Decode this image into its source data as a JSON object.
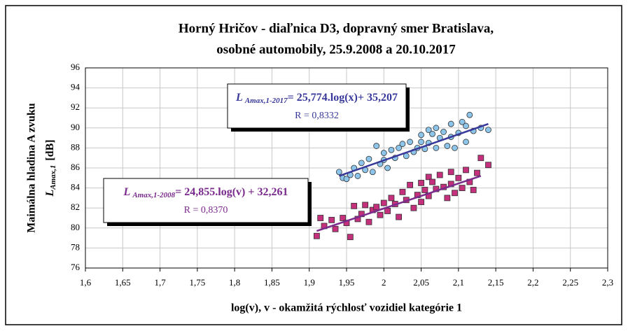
{
  "chart_data": {
    "type": "scatter",
    "title": [
      "Horný Hričov - diaľnica D3, dopravný smer Bratislava,",
      "osobné automobily, 25.9.2008 a 20.10.2017"
    ],
    "xlabel": "log(v), v -  okamžitá rýchlosť vozidiel kategórie 1",
    "ylabel": "Maimálna hladina A zvuku",
    "ylabel_symbol": "L",
    "ylabel_subscript": "Amax,1",
    "ylabel_unit": "[dB]",
    "xlim": [
      1.6,
      2.3
    ],
    "xticks": [
      {
        "value": 1.6,
        "label": "1,6"
      },
      {
        "value": 1.65,
        "label": "1,65"
      },
      {
        "value": 1.7,
        "label": "1,7"
      },
      {
        "value": 1.75,
        "label": "1,75"
      },
      {
        "value": 1.8,
        "label": "1,8"
      },
      {
        "value": 1.85,
        "label": "1,85"
      },
      {
        "value": 1.9,
        "label": "1,9"
      },
      {
        "value": 1.95,
        "label": "1,95"
      },
      2,
      {
        "value": 2.05,
        "label": "2,05"
      },
      {
        "value": 2.1,
        "label": "2,1"
      },
      {
        "value": 2.15,
        "label": "2,15"
      },
      {
        "value": 2.2,
        "label": "2,2"
      },
      {
        "value": 2.25,
        "label": "2,25"
      },
      {
        "value": 2.3,
        "label": "2,3"
      }
    ],
    "ylim": [
      76,
      96
    ],
    "yticks": [
      76,
      78,
      80,
      82,
      84,
      86,
      88,
      90,
      92,
      94,
      96
    ],
    "grid": true,
    "series": [
      {
        "marker": "circle",
        "color": "#8cc4ea",
        "line_color": "#38389a",
        "x": [
          1.94,
          1.945,
          1.95,
          1.955,
          1.96,
          1.965,
          1.97,
          1.975,
          1.98,
          1.985,
          1.99,
          1.995,
          2.0,
          2.0,
          2.005,
          2.01,
          2.015,
          2.02,
          2.025,
          2.03,
          2.035,
          2.04,
          2.045,
          2.05,
          2.05,
          2.055,
          2.06,
          2.06,
          2.065,
          2.07,
          2.07,
          2.075,
          2.08,
          2.085,
          2.09,
          2.09,
          2.095,
          2.1,
          2.105,
          2.11,
          2.11,
          2.115,
          2.12,
          2.13,
          2.14
        ],
        "values": [
          85.6,
          85.0,
          84.9,
          85.3,
          86.0,
          85.2,
          86.5,
          85.8,
          86.9,
          85.6,
          88.2,
          86.4,
          87.5,
          86.8,
          86.0,
          87.8,
          87.0,
          88.0,
          88.4,
          87.2,
          88.6,
          87.6,
          88.0,
          89.3,
          88.6,
          87.9,
          89.8,
          88.5,
          89.4,
          88.0,
          90.0,
          89.0,
          89.6,
          88.2,
          90.4,
          89.1,
          88.0,
          89.5,
          90.6,
          90.2,
          88.6,
          91.3,
          89.7,
          90.0,
          89.8
        ],
        "trend_x": [
          1.94,
          2.14
        ],
        "trend_y": [
          85.2,
          90.4
        ],
        "symbol": "L",
        "subscript": "Amax,1-2017",
        "equation": "= 25,774.log(x)+ 35,207",
        "r": "R = 0,8332"
      },
      {
        "marker": "square",
        "color": "#c4307c",
        "line_color": "#7a2a8c",
        "x": [
          1.91,
          1.915,
          1.92,
          1.93,
          1.935,
          1.945,
          1.95,
          1.955,
          1.96,
          1.965,
          1.97,
          1.975,
          1.98,
          1.985,
          1.99,
          1.995,
          2.0,
          2.005,
          2.01,
          2.015,
          2.02,
          2.025,
          2.03,
          2.035,
          2.04,
          2.045,
          2.05,
          2.05,
          2.055,
          2.06,
          2.06,
          2.065,
          2.07,
          2.075,
          2.08,
          2.085,
          2.09,
          2.09,
          2.095,
          2.1,
          2.105,
          2.11,
          2.115,
          2.12,
          2.125,
          2.13,
          2.14
        ],
        "values": [
          79.2,
          81.0,
          80.2,
          80.8,
          79.9,
          81.0,
          80.5,
          79.1,
          82.2,
          80.9,
          81.4,
          82.3,
          80.6,
          81.8,
          82.1,
          81.3,
          82.5,
          81.7,
          83.0,
          82.4,
          81.1,
          83.6,
          82.8,
          84.3,
          82.0,
          83.3,
          84.5,
          82.6,
          83.8,
          85.1,
          83.2,
          84.6,
          83.9,
          85.3,
          84.1,
          83.0,
          85.6,
          84.4,
          83.5,
          85.0,
          84.0,
          85.8,
          84.6,
          83.8,
          85.5,
          87.0,
          86.3
        ],
        "trend_x": [
          1.91,
          2.13
        ],
        "trend_y": [
          79.7,
          85.2
        ],
        "symbol": "L",
        "subscript": "Amax,1-2008",
        "equation": "= 24,855.log(v) + 32,261",
        "r": "R = 0,8370"
      }
    ]
  }
}
